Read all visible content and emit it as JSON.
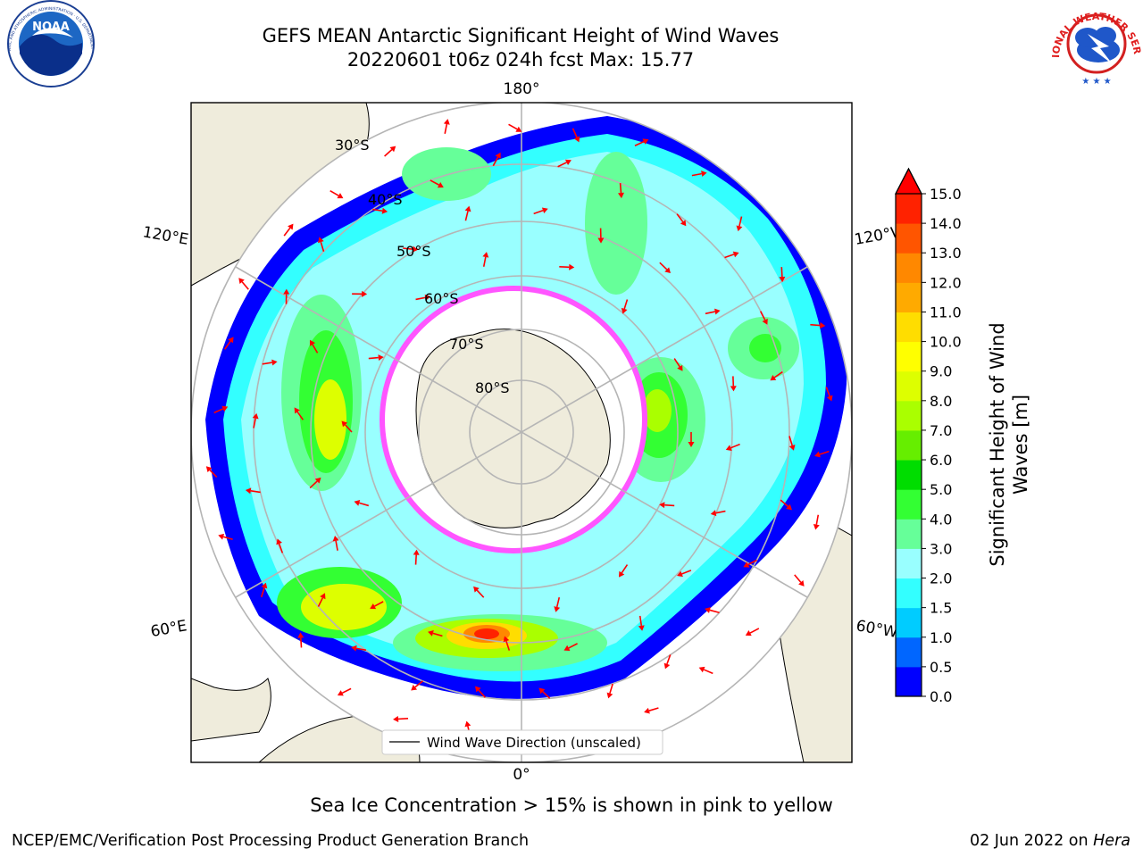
{
  "header": {
    "title_line1": "GEFS MEAN Antarctic Significant Height of Wind Waves",
    "title_line2": "20220601 t06z 024h fcst   Max: 15.77"
  },
  "logos": {
    "left": {
      "icon": "noaa-logo-icon",
      "text": "NOAA",
      "ring_text": "NATIONAL OCEANIC AND ATMOSPHERIC ADMINISTRATION · U.S. DEPARTMENT OF COMMERCE"
    },
    "right": {
      "icon": "nws-logo-icon",
      "ring_text": "NATIONAL WEATHER SERVICE"
    }
  },
  "map": {
    "projection": "south-polar-stereographic",
    "longitude_labels": {
      "top": "180°",
      "bottom": "0°",
      "upper_left": "120°E",
      "lower_left": "60°E",
      "upper_right": "120°W",
      "lower_right": "60°W"
    },
    "latitude_labels": [
      "30°S",
      "40°S",
      "50°S",
      "60°S",
      "70°S",
      "80°S"
    ],
    "legend": "Wind Wave Direction (unscaled)",
    "arrow_color": "#ff0000",
    "land_color": "#efecdc",
    "sea_ice_color": "#ff55ff"
  },
  "colorbar": {
    "title_line1": "Significant Height of Wind",
    "title_line2": "Waves [m]",
    "extend": "max",
    "levels": [
      0.0,
      0.5,
      1.0,
      1.5,
      2.0,
      3.0,
      4.0,
      5.0,
      6.0,
      7.0,
      8.0,
      9.0,
      10.0,
      11.0,
      12.0,
      13.0,
      14.0,
      15.0
    ],
    "tick_labels": [
      "0.0",
      "0.5",
      "1.0",
      "1.5",
      "2.0",
      "3.0",
      "4.0",
      "5.0",
      "6.0",
      "7.0",
      "8.0",
      "9.0",
      "10.0",
      "11.0",
      "12.0",
      "13.0",
      "14.0",
      "15.0"
    ],
    "colors": [
      "#0000ff",
      "#0066ff",
      "#00ccff",
      "#33ffff",
      "#99ffff",
      "#66ff99",
      "#33ff33",
      "#00dd00",
      "#66ee00",
      "#aaff00",
      "#ddff00",
      "#ffff00",
      "#ffdd00",
      "#ffaa00",
      "#ff8800",
      "#ff5500",
      "#ff2200"
    ],
    "extend_color": "#ff0000"
  },
  "footer": {
    "note": "Sea Ice Concentration > 15% is shown in pink to yellow",
    "left": "NCEP/EMC/Verification Post Processing Product Generation Branch",
    "right_date": "02 Jun 2022 on ",
    "right_host": "Hera"
  }
}
